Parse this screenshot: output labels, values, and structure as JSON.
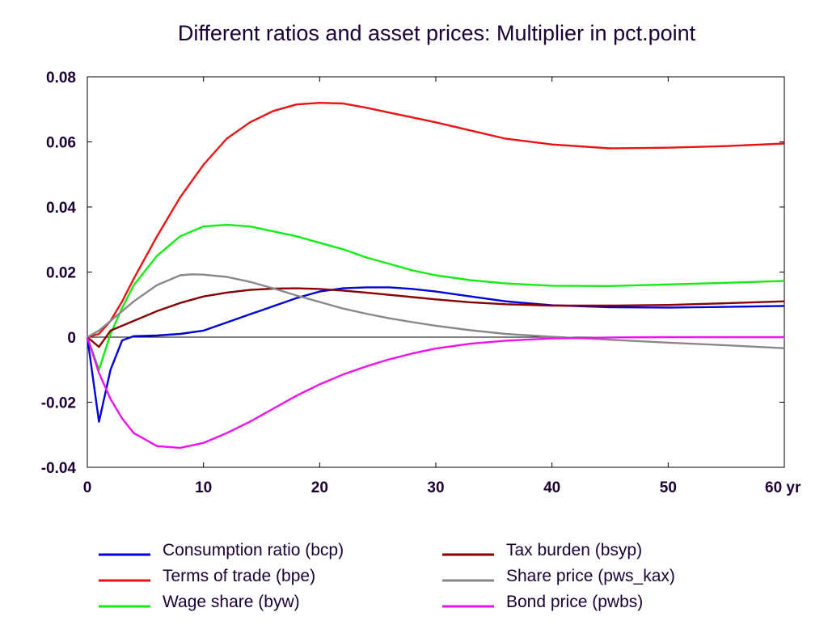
{
  "chart_data": {
    "type": "line",
    "title": "Different ratios and asset prices: Multiplier in pct.point",
    "xlabel": "",
    "ylabel": "",
    "xlim": [
      0,
      60
    ],
    "ylim": [
      -0.04,
      0.08
    ],
    "x_ticks": [
      0,
      10,
      20,
      30,
      40,
      50,
      60
    ],
    "x_tick_labels": [
      "0",
      "10",
      "20",
      "30",
      "40",
      "50",
      "60 yr"
    ],
    "y_ticks": [
      -0.04,
      -0.02,
      0,
      0.02,
      0.04,
      0.06,
      0.08
    ],
    "y_tick_labels": [
      "-0.04",
      "-0.02",
      "0",
      "0.02",
      "0.04",
      "0.06",
      "0.08"
    ],
    "grid": false,
    "zero_line": true,
    "legend_position": "bottom",
    "series": [
      {
        "name": "Consumption ratio (bcp)",
        "color": "#0000dd",
        "x": [
          0,
          1,
          2,
          3,
          4,
          6,
          8,
          10,
          12,
          14,
          16,
          18,
          20,
          22,
          24,
          26,
          28,
          30,
          33,
          36,
          40,
          45,
          50,
          55,
          60
        ],
        "y": [
          0,
          -0.026,
          -0.01,
          -0.001,
          0.0003,
          0.0005,
          0.001,
          0.002,
          0.0045,
          0.007,
          0.0095,
          0.012,
          0.014,
          0.015,
          0.0153,
          0.0153,
          0.0148,
          0.014,
          0.0125,
          0.011,
          0.0098,
          0.0092,
          0.0091,
          0.0093,
          0.0096
        ]
      },
      {
        "name": "Terms of trade (bpe)",
        "color": "#ee1111",
        "x": [
          0,
          1,
          2,
          3,
          4,
          6,
          8,
          10,
          12,
          14,
          16,
          18,
          20,
          22,
          24,
          26,
          28,
          30,
          33,
          36,
          40,
          45,
          50,
          55,
          60
        ],
        "y": [
          0,
          0.001,
          0.005,
          0.011,
          0.018,
          0.031,
          0.043,
          0.053,
          0.061,
          0.066,
          0.0695,
          0.0715,
          0.072,
          0.0718,
          0.0705,
          0.069,
          0.0675,
          0.066,
          0.0635,
          0.061,
          0.0592,
          0.058,
          0.0582,
          0.0587,
          0.0595
        ]
      },
      {
        "name": "Wage share (byw)",
        "color": "#11ee11",
        "x": [
          0,
          1,
          2,
          3,
          4,
          6,
          8,
          10,
          12,
          14,
          16,
          18,
          20,
          22,
          24,
          26,
          28,
          30,
          33,
          36,
          40,
          45,
          50,
          55,
          60
        ],
        "y": [
          0,
          -0.01,
          0.001,
          0.009,
          0.016,
          0.025,
          0.031,
          0.034,
          0.0345,
          0.034,
          0.0325,
          0.031,
          0.029,
          0.027,
          0.0245,
          0.0225,
          0.0205,
          0.019,
          0.0175,
          0.0165,
          0.0158,
          0.0157,
          0.0162,
          0.0167,
          0.0173
        ]
      },
      {
        "name": "Tax burden (bsyp)",
        "color": "#880000",
        "x": [
          0,
          1,
          2,
          3,
          4,
          6,
          8,
          10,
          12,
          14,
          16,
          18,
          20,
          22,
          24,
          26,
          28,
          30,
          33,
          36,
          40,
          45,
          50,
          55,
          60
        ],
        "y": [
          0,
          -0.003,
          0.002,
          0.0035,
          0.005,
          0.008,
          0.0105,
          0.0125,
          0.0137,
          0.0145,
          0.0149,
          0.015,
          0.0148,
          0.0143,
          0.0137,
          0.013,
          0.0123,
          0.0116,
          0.0107,
          0.0101,
          0.0097,
          0.0097,
          0.0099,
          0.0104,
          0.011
        ]
      },
      {
        "name": "Share price (pws_kax)",
        "color": "#888888",
        "x": [
          0,
          1,
          2,
          3,
          4,
          6,
          8,
          9,
          10,
          12,
          14,
          16,
          18,
          20,
          22,
          24,
          26,
          28,
          30,
          33,
          36,
          40,
          45,
          50,
          55,
          60
        ],
        "y": [
          0,
          0.002,
          0.005,
          0.008,
          0.011,
          0.016,
          0.019,
          0.0193,
          0.0192,
          0.0185,
          0.017,
          0.015,
          0.0128,
          0.0108,
          0.0088,
          0.0072,
          0.0058,
          0.0046,
          0.0035,
          0.0021,
          0.001,
          0.0001,
          -0.0008,
          -0.0017,
          -0.0025,
          -0.0034
        ]
      },
      {
        "name": "Bond price (pwbs)",
        "color": "#ee11ee",
        "x": [
          0,
          1,
          2,
          3,
          4,
          6,
          8,
          10,
          12,
          14,
          16,
          18,
          20,
          22,
          24,
          26,
          28,
          30,
          33,
          36,
          40,
          45,
          50,
          55,
          60
        ],
        "y": [
          0,
          -0.011,
          -0.019,
          -0.025,
          -0.0295,
          -0.0335,
          -0.034,
          -0.0325,
          -0.0295,
          -0.026,
          -0.022,
          -0.018,
          -0.0145,
          -0.0115,
          -0.009,
          -0.0068,
          -0.005,
          -0.0035,
          -0.002,
          -0.0011,
          -0.0004,
          -0.0001,
          0,
          0,
          0
        ]
      }
    ]
  }
}
